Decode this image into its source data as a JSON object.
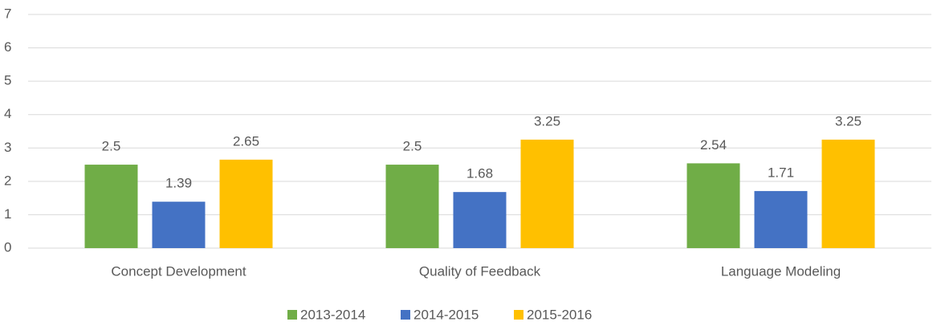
{
  "chart_data": {
    "type": "bar",
    "categories": [
      "Concept Development",
      "Quality of Feedback",
      "Language Modeling"
    ],
    "series": [
      {
        "name": "2013-2014",
        "color": "#70ad47",
        "values": [
          2.5,
          2.5,
          2.54
        ]
      },
      {
        "name": "2014-2015",
        "color": "#4472c4",
        "values": [
          1.39,
          1.68,
          1.71
        ]
      },
      {
        "name": "2015-2016",
        "color": "#ffc000",
        "values": [
          2.65,
          3.25,
          3.25
        ]
      }
    ],
    "ylim": [
      0,
      7
    ],
    "yticks": [
      0,
      1,
      2,
      3,
      4,
      5,
      6,
      7
    ],
    "grid": true,
    "legend": "bottom"
  }
}
